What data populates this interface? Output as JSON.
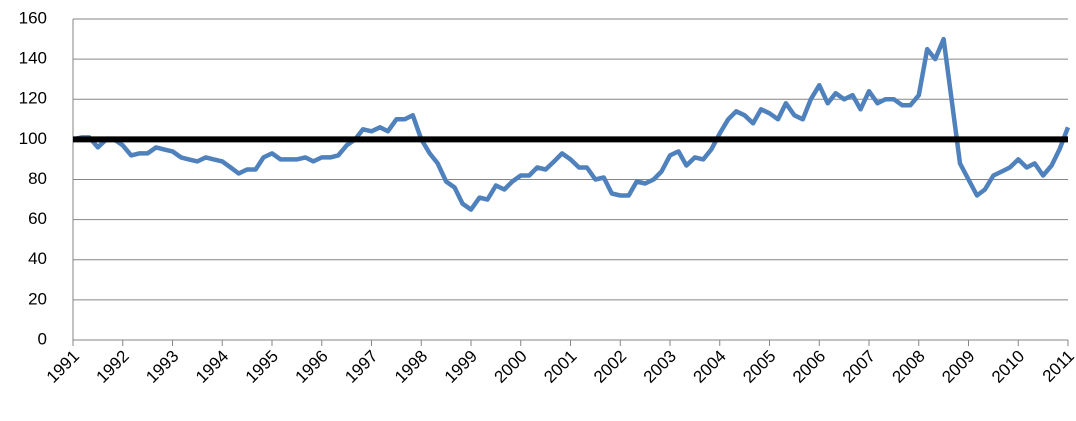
{
  "chart_data": {
    "type": "line",
    "x": [
      1991,
      1991.17,
      1991.33,
      1991.5,
      1991.67,
      1991.83,
      1992,
      1992.17,
      1992.33,
      1992.5,
      1992.67,
      1992.83,
      1993,
      1993.17,
      1993.33,
      1993.5,
      1993.67,
      1993.83,
      1994,
      1994.17,
      1994.33,
      1994.5,
      1994.67,
      1994.83,
      1995,
      1995.17,
      1995.33,
      1995.5,
      1995.67,
      1995.83,
      1996,
      1996.17,
      1996.33,
      1996.5,
      1996.67,
      1996.83,
      1997,
      1997.17,
      1997.33,
      1997.5,
      1997.67,
      1997.83,
      1998,
      1998.17,
      1998.33,
      1998.5,
      1998.67,
      1998.83,
      1999,
      1999.17,
      1999.33,
      1999.5,
      1999.67,
      1999.83,
      2000,
      2000.17,
      2000.33,
      2000.5,
      2000.67,
      2000.83,
      2001,
      2001.17,
      2001.33,
      2001.5,
      2001.67,
      2001.83,
      2002,
      2002.17,
      2002.33,
      2002.5,
      2002.67,
      2002.83,
      2003,
      2003.17,
      2003.33,
      2003.5,
      2003.67,
      2003.83,
      2004,
      2004.17,
      2004.33,
      2004.5,
      2004.67,
      2004.83,
      2005,
      2005.17,
      2005.33,
      2005.5,
      2005.67,
      2005.83,
      2006,
      2006.17,
      2006.33,
      2006.5,
      2006.67,
      2006.83,
      2007,
      2007.17,
      2007.33,
      2007.5,
      2007.67,
      2007.83,
      2008,
      2008.17,
      2008.33,
      2008.5,
      2008.67,
      2008.83,
      2009,
      2009.17,
      2009.33,
      2009.5,
      2009.67,
      2009.83,
      2010,
      2010.17,
      2010.33,
      2010.5,
      2010.67,
      2010.83,
      2011
    ],
    "series": [
      {
        "color": "#4f81bd",
        "values": [
          100,
          101,
          101,
          96,
          100,
          100,
          97,
          92,
          93,
          93,
          96,
          95,
          94,
          91,
          90,
          89,
          91,
          90,
          89,
          86,
          83,
          85,
          85,
          91,
          93,
          90,
          90,
          90,
          91,
          89,
          91,
          91,
          92,
          97,
          100,
          105,
          104,
          106,
          104,
          110,
          110,
          112,
          100,
          93,
          88,
          79,
          76,
          68,
          65,
          71,
          70,
          77,
          75,
          79,
          82,
          82,
          86,
          85,
          89,
          93,
          90,
          86,
          86,
          80,
          81,
          73,
          72,
          72,
          79,
          78,
          80,
          84,
          92,
          94,
          87,
          91,
          90,
          95,
          103,
          110,
          114,
          112,
          108,
          115,
          113,
          110,
          118,
          112,
          110,
          120,
          127,
          118,
          123,
          120,
          122,
          115,
          124,
          118,
          120,
          120,
          117,
          117,
          122,
          145,
          140,
          150,
          118,
          88,
          80,
          72,
          75,
          82,
          84,
          86,
          90,
          86,
          88,
          82,
          87,
          95,
          106
        ]
      }
    ],
    "hline": 100,
    "hline_color": "#000000",
    "xlim": [
      1991,
      2011
    ],
    "xticks": [
      1991,
      1992,
      1993,
      1994,
      1995,
      1996,
      1997,
      1998,
      1999,
      2000,
      2001,
      2002,
      2003,
      2004,
      2005,
      2006,
      2007,
      2008,
      2009,
      2010,
      2011
    ],
    "ylim": [
      0,
      160
    ],
    "yticks": [
      0,
      20,
      40,
      60,
      80,
      100,
      120,
      140,
      160
    ],
    "grid": true
  }
}
